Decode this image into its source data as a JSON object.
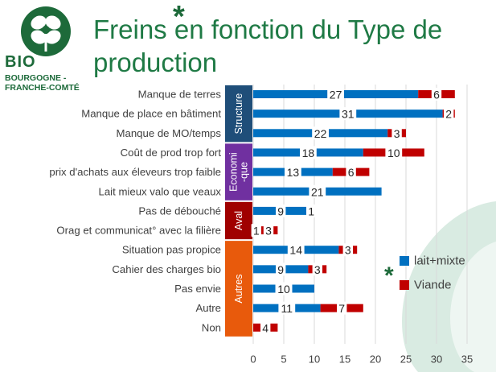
{
  "brand": {
    "name": "BIO",
    "region_line1": "BOURGOGNE -",
    "region_line2": "FRANCHE-COMTÉ",
    "logo_icon": "clover-leaf-icon",
    "color": "#1d6a3a"
  },
  "slide": {
    "title_line1": "Freins en fonction du  Type de",
    "title_line2": "production",
    "title_color": "#1f7a45",
    "title_marker": "*"
  },
  "chart_data": {
    "type": "bar",
    "orientation": "horizontal",
    "stacked": true,
    "categories": [
      "Manque de terres",
      "Manque de place en bâtiment",
      "Manque de MO/temps",
      "Coût de prod trop fort",
      "prix d'achats aux éleveurs trop faible",
      "Lait mieux valo que veaux",
      "Pas de débouché",
      "Orag et communicat° avec la filière",
      "Situation pas propice",
      "Cahier des charges bio",
      "Pas envie",
      "Autre",
      "Non"
    ],
    "series": [
      {
        "name": "lait+mixte",
        "color": "#0070c0",
        "values": [
          27,
          31,
          22,
          18,
          13,
          21,
          9,
          1,
          14,
          9,
          10,
          11,
          0
        ],
        "labels": [
          "27",
          "31",
          "22",
          "18",
          "13",
          "",
          "9",
          "1",
          "14",
          "9",
          "10",
          "11",
          ""
        ]
      },
      {
        "name": "Viande",
        "color": "#c00000",
        "values": [
          6,
          2,
          3,
          10,
          6,
          0,
          1,
          3,
          3,
          3,
          0,
          7,
          4
        ],
        "labels": [
          "6",
          "2",
          "3",
          "10",
          "6",
          "",
          "1",
          "3",
          "3",
          "3",
          "",
          "7",
          "4"
        ]
      }
    ],
    "extra_labels": {
      "row_5_label": "21",
      "row_10_label": "10"
    },
    "groups": [
      {
        "name": "Structure",
        "color": "#1f4e79",
        "start": 0,
        "end": 2
      },
      {
        "name": "Economi-que",
        "color": "#7030a0",
        "start": 3,
        "end": 5
      },
      {
        "name": "Aval",
        "color": "#a00000",
        "start": 6,
        "end": 7
      },
      {
        "name": "Autres",
        "color": "#e85a0c",
        "start": 8,
        "end": 12
      }
    ],
    "x_ticks": [
      "0",
      "5",
      "10",
      "15",
      "20",
      "25",
      "30",
      "35"
    ],
    "xlim": [
      0,
      35
    ],
    "legend_position": "right",
    "legend_marker": "*",
    "grid": true,
    "title": "",
    "xlabel": "",
    "ylabel": ""
  }
}
